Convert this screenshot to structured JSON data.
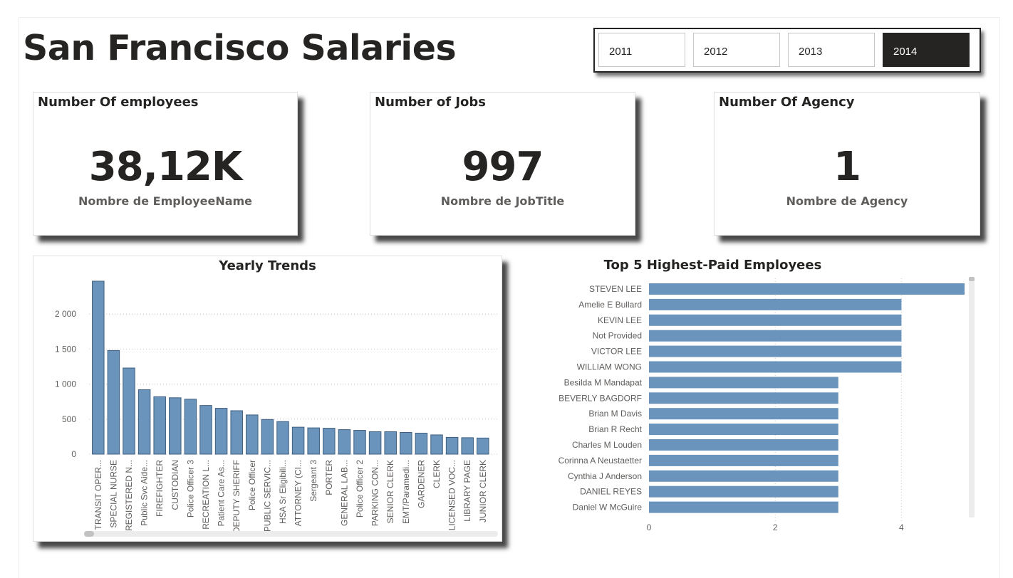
{
  "page": {
    "title": "San Francisco Salaries"
  },
  "year_slicer": {
    "options": [
      "2011",
      "2012",
      "2013",
      "2014"
    ],
    "selected": "2014"
  },
  "cards": [
    {
      "title": "Number Of employees",
      "value": "38,12K",
      "label": "Nombre de EmployeeName"
    },
    {
      "title": "Number of Jobs",
      "value": "997",
      "label": "Nombre de JobTitle"
    },
    {
      "title": "Number Of Agency",
      "value": "1",
      "label": "Nombre de Agency"
    }
  ],
  "yearly_trends": {
    "title": "Yearly Trends",
    "chart_data": {
      "type": "bar",
      "orientation": "vertical",
      "title": "Yearly Trends",
      "categories": [
        "TRANSIT OPER...",
        "SPECIAL NURSE",
        "REGISTERED N...",
        "Public Svc Aide...",
        "FIREFIGHTER",
        "CUSTODIAN",
        "Police Officer 3",
        "RECREATION L...",
        "Patient Care As...",
        "DEPUTY SHERIFF",
        "Police Officer",
        "PUBLIC SERVIC...",
        "HSA Sr Eligibili...",
        "ATTORNEY (CI...",
        "Sergeant 3",
        "PORTER",
        "GENERAL LAB...",
        "Police Officer 2",
        "PARKING CON...",
        "SENIOR CLERK",
        "EMT/Paramedi...",
        "GARDENER",
        "CLERK",
        "LICENSED VOC...",
        "LIBRARY PAGE",
        "JUNIOR CLERK"
      ],
      "values": [
        2470,
        1480,
        1230,
        920,
        820,
        805,
        785,
        695,
        655,
        620,
        560,
        495,
        465,
        385,
        375,
        370,
        350,
        340,
        320,
        320,
        310,
        300,
        275,
        240,
        235,
        230
      ],
      "ylim": [
        0,
        2470
      ],
      "yticks": [
        0,
        500,
        1000,
        1500,
        2000
      ],
      "ytick_labels": [
        "0",
        "500",
        "1 000",
        "1 500",
        "2 000"
      ],
      "grid": true,
      "color": "#6a94bb"
    }
  },
  "top5": {
    "title": "Top 5 Highest-Paid Employees",
    "chart_data": {
      "type": "bar",
      "orientation": "horizontal",
      "title": "Top 5 Highest-Paid Employees",
      "categories": [
        "STEVEN LEE",
        "Amelie E Bullard",
        "KEVIN LEE",
        "Not Provided",
        "VICTOR LEE",
        "WILLIAM WONG",
        "Besilda M Mandapat",
        "BEVERLY BAGDORF",
        "Brian M Davis",
        "Brian R Recht",
        "Charles M Louden",
        "Corinna A Neustaetter",
        "Cynthia J Anderson",
        "DANIEL REYES",
        "Daniel W McGuire"
      ],
      "values": [
        5,
        4,
        4,
        4,
        4,
        4,
        3,
        3,
        3,
        3,
        3,
        3,
        3,
        3,
        3
      ],
      "xlim": [
        0,
        5
      ],
      "xticks": [
        0,
        2,
        4
      ],
      "xtick_labels": [
        "0",
        "2",
        "4"
      ],
      "grid": true,
      "color": "#6a94bb"
    }
  }
}
